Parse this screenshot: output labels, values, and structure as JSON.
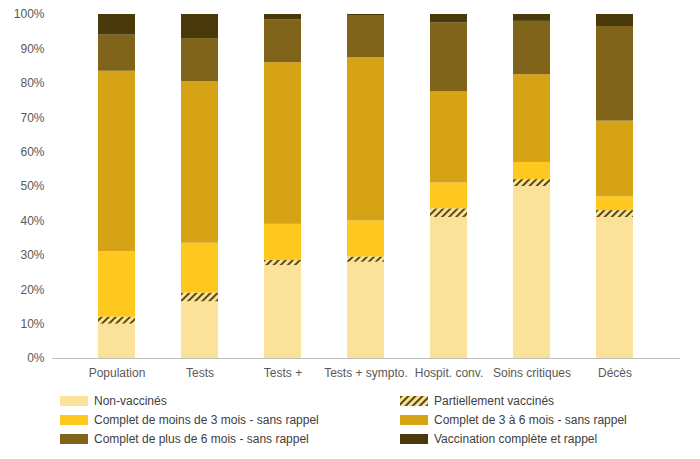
{
  "chart_data": {
    "type": "bar",
    "stacked": true,
    "categories": [
      "Population",
      "Tests",
      "Tests +",
      "Tests + sympto.",
      "Hospit. conv.",
      "Soins critiques",
      "Décès"
    ],
    "series": [
      {
        "name": "Non-vaccinés",
        "color": "#FBE29A",
        "values": [
          10,
          16.5,
          27,
          28,
          41,
          50,
          41
        ]
      },
      {
        "name": "Partiellement vaccinés",
        "color": "#5C4A10",
        "marker": "hatch",
        "values": [
          2,
          2.5,
          1.5,
          1.5,
          2.5,
          2,
          2
        ]
      },
      {
        "name": "Complet de moins de 3 mois - sans rappel",
        "color": "#FFC81E",
        "values": [
          19,
          14.5,
          10.5,
          10.5,
          7.5,
          5,
          4
        ]
      },
      {
        "name": "Complet de 3 à 6 mois - sans rappel",
        "color": "#D6A216",
        "values": [
          52.5,
          47,
          47,
          47.5,
          26.5,
          25.5,
          22
        ]
      },
      {
        "name": "Complet de plus de 6 mois - sans rappel",
        "color": "#7F6419",
        "values": [
          10.5,
          12.5,
          12.5,
          12,
          20,
          15.5,
          27.5
        ]
      },
      {
        "name": "Vaccination complète et rappel",
        "color": "#4A3A0B",
        "values": [
          6,
          7,
          1.5,
          0.5,
          2.5,
          2,
          3.5
        ]
      }
    ],
    "ylim": [
      0,
      100
    ],
    "yticks": [
      {
        "value": 0,
        "label": "0%"
      },
      {
        "value": 10,
        "label": "10%"
      },
      {
        "value": 20,
        "label": "20%"
      },
      {
        "value": 30,
        "label": "30%"
      },
      {
        "value": 40,
        "label": "40%"
      },
      {
        "value": 50,
        "label": "50%"
      },
      {
        "value": 60,
        "label": "60%"
      },
      {
        "value": 70,
        "label": "70%"
      },
      {
        "value": 80,
        "label": "80%"
      },
      {
        "value": 90,
        "label": "90%"
      },
      {
        "value": 100,
        "label": "100%"
      }
    ],
    "grid": false,
    "legend": "bottom"
  }
}
